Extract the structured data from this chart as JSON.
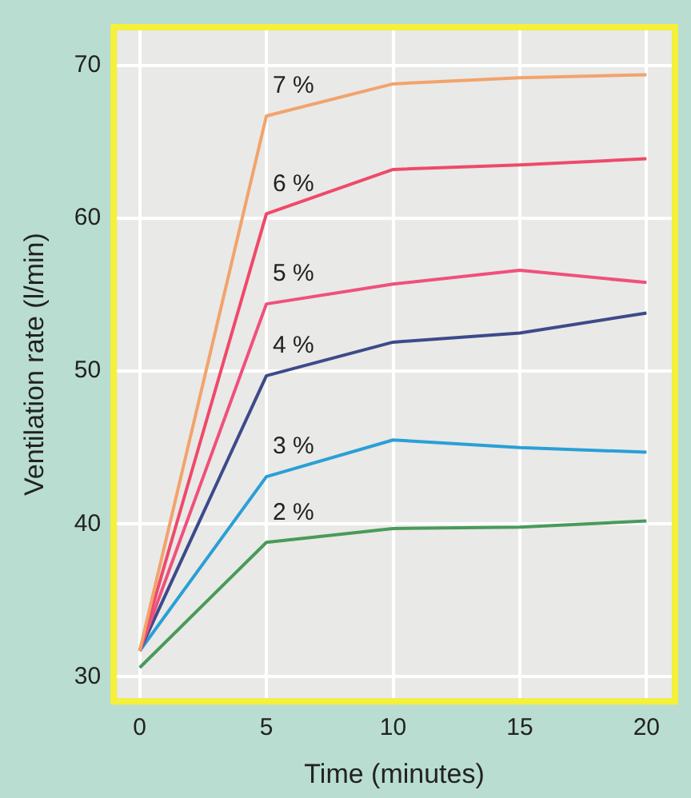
{
  "chart_data": {
    "type": "line",
    "xlabel": "Time (minutes)",
    "ylabel": "Ventilation rate (l/min)",
    "x": [
      0,
      5,
      10,
      15,
      20
    ],
    "xlim": [
      -0.9,
      21
    ],
    "ylim": [
      28.6,
      72.3
    ],
    "xticks": [
      0,
      5,
      10,
      15,
      20
    ],
    "yticks": [
      30,
      40,
      50,
      60,
      70
    ],
    "grid": true,
    "legend": false,
    "marker": "none",
    "line_style": "solid",
    "series": [
      {
        "name": "7 %",
        "color": "#f2a36c",
        "values": [
          31.7,
          66.7,
          68.8,
          69.2,
          69.4
        ]
      },
      {
        "name": "6 %",
        "color": "#ee4a6a",
        "values": [
          31.7,
          60.3,
          63.2,
          63.5,
          63.9
        ]
      },
      {
        "name": "5 %",
        "color": "#f0507c",
        "values": [
          31.7,
          54.4,
          55.7,
          56.6,
          55.8
        ]
      },
      {
        "name": "4 %",
        "color": "#3d4a8a",
        "values": [
          31.7,
          49.7,
          51.9,
          52.5,
          53.8
        ]
      },
      {
        "name": "3 %",
        "color": "#2a9fd6",
        "values": [
          31.7,
          43.1,
          45.5,
          45.0,
          44.7
        ]
      },
      {
        "name": "2 %",
        "color": "#4a9a5a",
        "values": [
          30.6,
          38.8,
          39.7,
          39.8,
          40.2
        ]
      }
    ]
  }
}
